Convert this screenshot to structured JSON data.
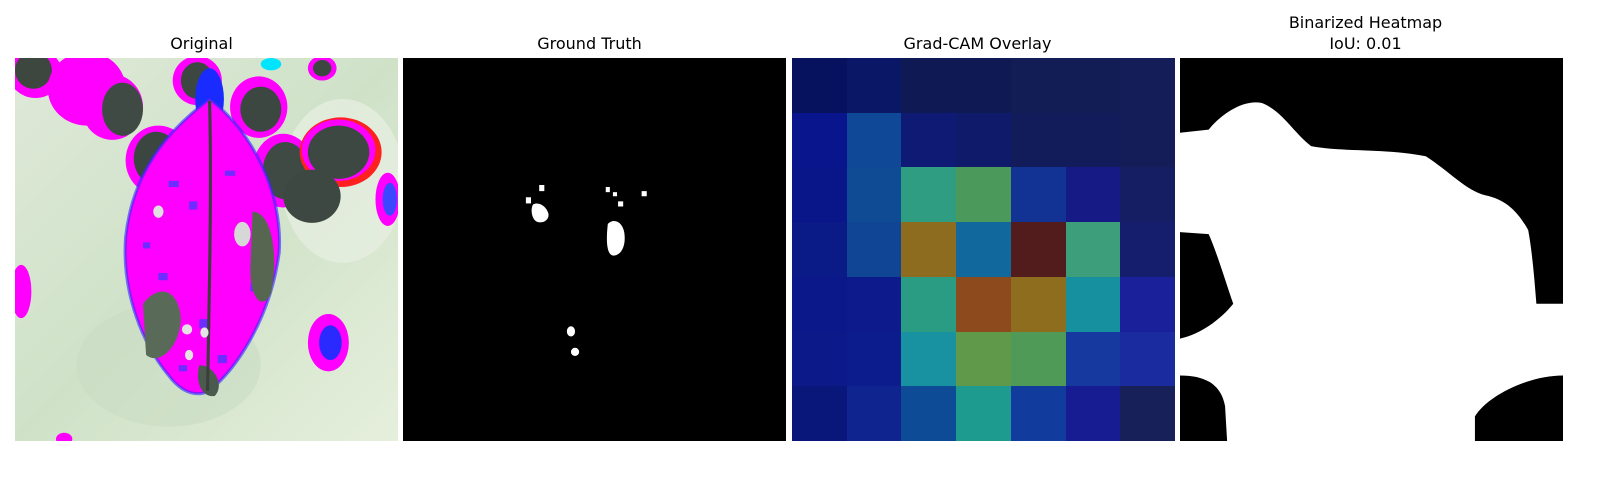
{
  "panels": [
    {
      "title": "Original"
    },
    {
      "title": "Ground Truth"
    },
    {
      "title": "Grad-CAM Overlay"
    },
    {
      "title": "Binarized Heatmap",
      "subtitle": "IoU: 0.01"
    }
  ],
  "heatmap": {
    "grid": [
      [
        "#06125e",
        "#0a1766",
        "#0f1a55",
        "#0f1a55",
        "#121c55",
        "#121c55",
        "#141d57"
      ],
      [
        "#08158c",
        "#0f4896",
        "#0e1a74",
        "#0f1a6a",
        "#121c5a",
        "#121c5a",
        "#141d57"
      ],
      [
        "#08168a",
        "#0f4a95",
        "#2f9d82",
        "#4b9a5b",
        "#123393",
        "#161a85",
        "#151e62"
      ],
      [
        "#0a1a86",
        "#0f4594",
        "#8d6c1f",
        "#11689d",
        "#521c1d",
        "#3c9e7a",
        "#151e6c"
      ],
      [
        "#0a188a",
        "#0c1a8c",
        "#2b9c84",
        "#8c4a1d",
        "#8f6d1f",
        "#168f9f",
        "#1a1f9a"
      ],
      [
        "#0b1a88",
        "#0d1c8d",
        "#1891a0",
        "#61994b",
        "#509a58",
        "#1639a0",
        "#1a2a9f"
      ],
      [
        "#0a177a",
        "#0f248f",
        "#0e4b97",
        "#1d9b8e",
        "#123b9e",
        "#181c92",
        "#18205a"
      ]
    ]
  }
}
